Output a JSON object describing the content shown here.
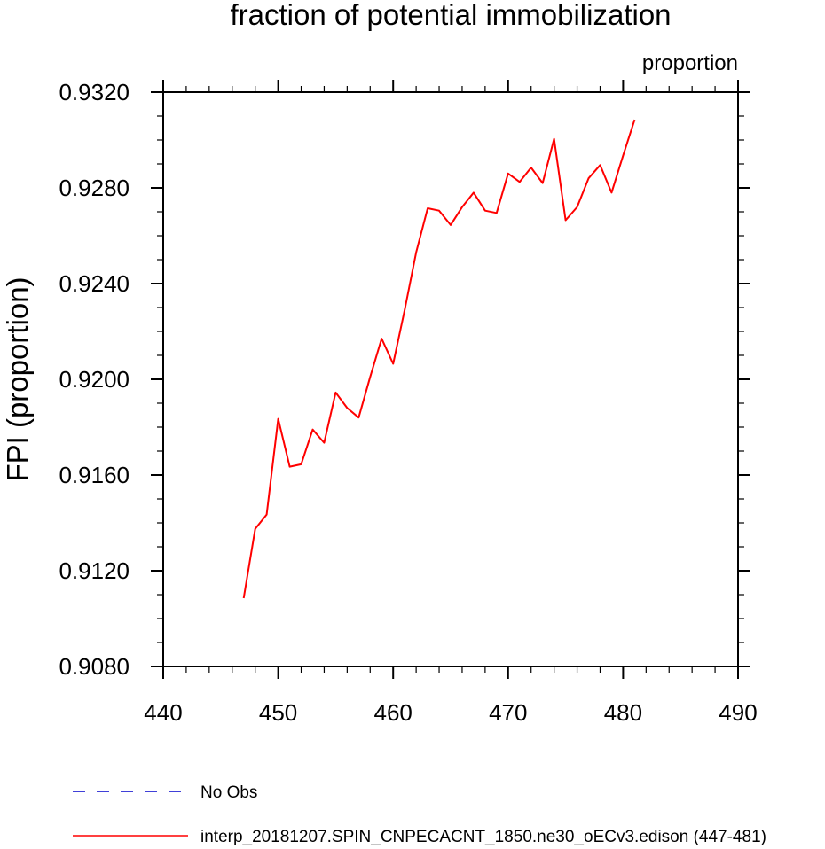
{
  "chart_data": {
    "type": "line",
    "title": "fraction of potential immobilization",
    "units_label": "proportion",
    "ylabel": "FPI  (proportion)",
    "xlabel": "",
    "xlim": [
      440,
      490
    ],
    "ylim": [
      0.908,
      0.932
    ],
    "x_ticks": [
      440,
      450,
      460,
      470,
      480,
      490
    ],
    "x_tick_labels": [
      "440",
      "450",
      "460",
      "470",
      "480",
      "490"
    ],
    "y_ticks": [
      0.908,
      0.912,
      0.916,
      0.92,
      0.924,
      0.928,
      0.932
    ],
    "y_tick_labels": [
      "0.9080",
      "0.9120",
      "0.9160",
      "0.9200",
      "0.9240",
      "0.9280",
      "0.9320"
    ],
    "grid": false,
    "legend_position": "bottom",
    "series": [
      {
        "name": "interp_20181207.SPIN_CNPECACNT_1850.ne30_oECv3.edison (447-481)",
        "color": "#ff0000",
        "style": "solid",
        "x": [
          447,
          448,
          449,
          450,
          451,
          452,
          453,
          454,
          455,
          456,
          457,
          458,
          459,
          460,
          461,
          462,
          463,
          464,
          465,
          466,
          467,
          468,
          469,
          470,
          471,
          472,
          473,
          474,
          475,
          476,
          477,
          478,
          479,
          480,
          481
        ],
        "y": [
          0.91085,
          0.91375,
          0.91435,
          0.91835,
          0.91635,
          0.91645,
          0.9179,
          0.91735,
          0.91945,
          0.9188,
          0.9184,
          0.9201,
          0.9217,
          0.92065,
          0.9229,
          0.9253,
          0.92715,
          0.92705,
          0.92645,
          0.9272,
          0.9278,
          0.92705,
          0.92695,
          0.9286,
          0.92825,
          0.92885,
          0.9282,
          0.93005,
          0.92665,
          0.9272,
          0.9284,
          0.92895,
          0.9278,
          0.92935,
          0.93085
        ]
      }
    ],
    "legend": [
      {
        "label": "No Obs",
        "color": "#0000cc",
        "style": "dashed"
      },
      {
        "label": "interp_20181207.SPIN_CNPECACNT_1850.ne30_oECv3.edison (447-481)",
        "color": "#ff0000",
        "style": "solid"
      }
    ]
  }
}
